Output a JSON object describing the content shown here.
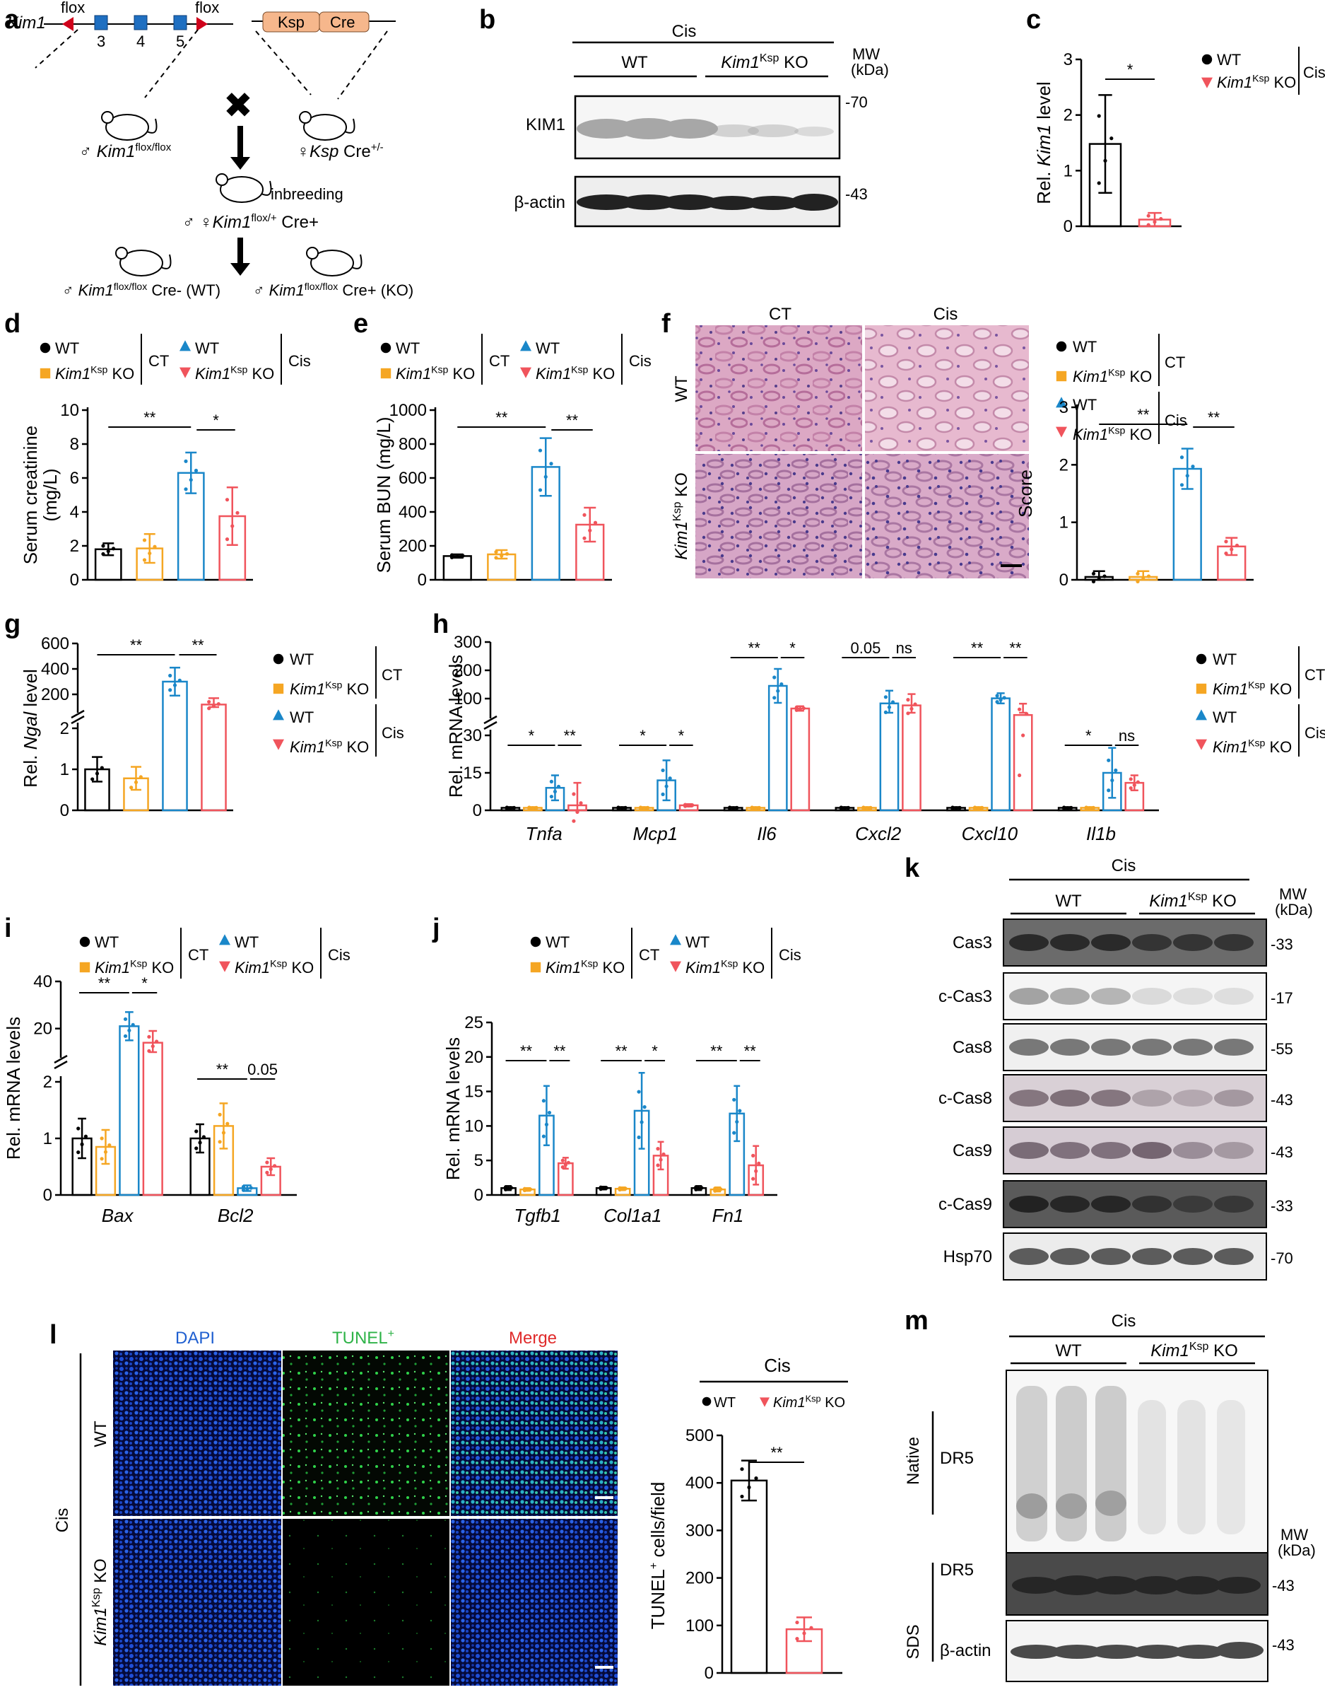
{
  "panel_letters": [
    "a",
    "b",
    "c",
    "d",
    "e",
    "f",
    "g",
    "h",
    "i",
    "j",
    "k",
    "l",
    "m"
  ],
  "panel_a": {
    "gene": "Kim1",
    "flox_left": "flox",
    "flox_right": "flox",
    "exons": [
      "3",
      "4",
      "5"
    ],
    "construct_ksp": "Ksp",
    "construct_cre": "Cre",
    "male_parent_prefix": "♂",
    "male_parent_gene": "Kim1",
    "male_parent_sup": "flox/flox",
    "female_parent_prefix": "♀",
    "female_parent_gene": "Ksp",
    "female_parent_rest": " Cre",
    "female_parent_sup": "+/-",
    "inbreeding": "inbreeding",
    "f1_prefix": "♂ ♀",
    "f1_gene": "Kim1",
    "f1_sup": "flox/+",
    "f1_rest": " Cre+",
    "wt_prefix": "♂",
    "wt_gene": "Kim1",
    "wt_sup": "flox/flox",
    "wt_rest": " Cre- (WT)",
    "ko_prefix": "♂",
    "ko_gene": "Kim1",
    "ko_sup": "flox/flox",
    "ko_rest": " Cre+ (KO)",
    "cross_symbol": "✖"
  },
  "legend_ct_cis": {
    "wt": "WT",
    "ko_gene": "Kim1",
    "ko_sup": "Ksp",
    "ko_rest": " KO",
    "ct": "CT",
    "cis": "Cis"
  },
  "panel_b": {
    "header": "Cis",
    "wt": "WT",
    "ko_gene": "Kim1",
    "ko_sup": "Ksp",
    "ko_rest": " KO",
    "mw_line1": "MW",
    "mw_line2": "(kDa)",
    "blots": [
      {
        "label": "KIM1",
        "mw": "-70"
      },
      {
        "label": "β-actin",
        "mw": "-43"
      }
    ]
  },
  "panel_k": {
    "header": "Cis",
    "wt": "WT",
    "ko_gene": "Kim1",
    "ko_sup": "Ksp",
    "ko_rest": " KO",
    "mw_line1": "MW",
    "mw_line2": "(kDa)",
    "blots": [
      {
        "label": "Cas3",
        "mw": "-33"
      },
      {
        "label": "c-Cas3",
        "mw": "-17"
      },
      {
        "label": "Cas8",
        "mw": "-55"
      },
      {
        "label": "c-Cas8",
        "mw": "-43"
      },
      {
        "label": "Cas9",
        "mw": "-43"
      },
      {
        "label": "c-Cas9",
        "mw": "-33"
      },
      {
        "label": "Hsp70",
        "mw": "-70"
      }
    ]
  },
  "panel_m": {
    "header": "Cis",
    "wt": "WT",
    "ko_gene": "Kim1",
    "ko_sup": "Ksp",
    "ko_rest": " KO",
    "native": "Native",
    "sds": "SDS",
    "dr5_native": "DR5",
    "dr5_sds": "DR5",
    "beta_actin": "β-actin",
    "mw_line1": "MW",
    "mw_line2": "(kDa)",
    "mw_dr5": "-43",
    "mw_actin": "-43"
  },
  "panel_f_images": {
    "col_ct": "CT",
    "col_cis": "Cis",
    "row_wt": "WT",
    "row_ko_gene": "Kim1",
    "row_ko_sup": "Ksp",
    "row_ko_rest": " KO"
  },
  "panel_l_images": {
    "col_dapi": "DAPI",
    "col_tunel": "TUNEL",
    "col_tunel_sup": "+",
    "col_merge": "Merge",
    "row_wt": "WT",
    "row_ko_gene": "Kim1",
    "row_ko_sup": "Ksp",
    "row_ko_rest": " KO",
    "side": "Cis"
  },
  "colors": {
    "wt_ct": "#000000",
    "ko_ct": "#f5a623",
    "wt_cis": "#1a87c9",
    "ko_cis": "#f0545c",
    "construct": "#f6b78c",
    "exon": "#1f6fc1",
    "loxp": "#d0021b"
  },
  "chart_data": [
    {
      "panel": "c",
      "type": "bar",
      "categories": [
        "WT",
        "Kim1Ksp KO"
      ],
      "values": [
        1.48,
        0.12
      ],
      "errors": [
        0.88,
        0.12
      ],
      "ylabel_pre": "Rel. ",
      "ylabel_it": "Kim1",
      "ylabel_post": "  level",
      "ylim": [
        0,
        3
      ],
      "yticks": [
        0,
        1,
        2,
        3
      ],
      "legend": {
        "wt": "WT",
        "ko_gene": "Kim1",
        "ko_sup": "Ksp",
        "ko_rest": " KO",
        "group": "Cis"
      },
      "sig": [
        {
          "label": "*"
        }
      ]
    },
    {
      "panel": "d",
      "type": "bar",
      "categories": [
        "WT CT",
        "KO CT",
        "WT Cis",
        "KO Cis"
      ],
      "values": [
        1.8,
        1.85,
        6.3,
        3.75
      ],
      "errors": [
        0.35,
        0.85,
        1.2,
        1.7
      ],
      "ylabel": "Serum creatinine",
      "ylabel2": "(mg/L)",
      "ylim": [
        0,
        10
      ],
      "yticks": [
        0,
        2,
        4,
        6,
        8,
        10
      ],
      "sig": [
        {
          "label": "**"
        },
        {
          "label": "*"
        }
      ]
    },
    {
      "panel": "e",
      "type": "bar",
      "categories": [
        "WT CT",
        "KO CT",
        "WT Cis",
        "KO Cis"
      ],
      "values": [
        140,
        150,
        665,
        325
      ],
      "errors": [
        10,
        25,
        170,
        100
      ],
      "ylabel": "Serum BUN (mg/L)",
      "ylim": [
        0,
        1000
      ],
      "yticks": [
        0,
        200,
        400,
        600,
        800,
        1000
      ],
      "sig": [
        {
          "label": "**"
        },
        {
          "label": "**"
        }
      ]
    },
    {
      "panel": "f",
      "type": "bar",
      "categories": [
        "WT CT",
        "KO CT",
        "WT Cis",
        "KO Cis"
      ],
      "values": [
        0.05,
        0.05,
        1.93,
        0.58
      ],
      "errors": [
        0.1,
        0.1,
        0.35,
        0.15
      ],
      "ylabel": "Score",
      "ylim": [
        0,
        3
      ],
      "yticks": [
        0,
        1,
        2,
        3
      ],
      "sig": [
        {
          "label": "**"
        },
        {
          "label": "**"
        }
      ]
    },
    {
      "panel": "g",
      "type": "bar",
      "broken_axis": true,
      "categories": [
        "WT CT",
        "KO CT",
        "WT Cis",
        "KO Cis"
      ],
      "values": [
        1.0,
        0.78,
        300,
        120
      ],
      "errors": [
        0.3,
        0.28,
        110,
        50
      ],
      "ylabel_pre": "Rel. ",
      "ylabel_it": "Ngal",
      "ylabel_post": "  level",
      "lower_ticks": [
        0,
        1,
        2
      ],
      "upper_ticks": [
        200,
        400,
        600
      ],
      "sig": [
        {
          "label": "**"
        },
        {
          "label": "**"
        }
      ]
    },
    {
      "panel": "h",
      "type": "bar",
      "broken_axis": true,
      "categories": [
        "Tnfa",
        "Mcp1",
        "Il6",
        "Cxcl2",
        "Cxcl10",
        "Il1b"
      ],
      "series": [
        {
          "group": "WT CT",
          "values": [
            1,
            1,
            1,
            1,
            1,
            1
          ]
        },
        {
          "group": "KO CT",
          "values": [
            1,
            1,
            1,
            1,
            1,
            1
          ]
        },
        {
          "group": "WT Cis",
          "values": [
            9,
            12,
            145,
            83,
            101,
            15
          ]
        },
        {
          "group": "KO Cis",
          "values": [
            2,
            2,
            65,
            76,
            42,
            11
          ]
        }
      ],
      "errors": [
        [
          0.3,
          0.3,
          5,
          9
        ],
        [
          0.3,
          0.3,
          8,
          0.5
        ],
        [
          0.3,
          0.3,
          60,
          8
        ],
        [
          0.3,
          0.3,
          45,
          40
        ],
        [
          0.3,
          0.3,
          18,
          40
        ],
        [
          0.3,
          0.3,
          10,
          3
        ]
      ],
      "ylabel": "Rel. mRNA levels",
      "lower_ticks": [
        0,
        15,
        30
      ],
      "upper_ticks": [
        100,
        200,
        300
      ],
      "sig": [
        {
          "cat": "Tnfa",
          "left": "*",
          "right": "**"
        },
        {
          "cat": "Mcp1",
          "left": "*",
          "right": "*"
        },
        {
          "cat": "Il6",
          "left": "**",
          "right": "*"
        },
        {
          "cat": "Cxcl2",
          "left": "0.05",
          "right": "ns"
        },
        {
          "cat": "Cxcl10",
          "left": "**",
          "right": "**"
        },
        {
          "cat": "Il1b",
          "left": "*",
          "right": "ns"
        }
      ]
    },
    {
      "panel": "i",
      "type": "bar",
      "broken_axis": true,
      "categories": [
        "Bax",
        "Bcl2"
      ],
      "series": [
        {
          "group": "WT CT",
          "values": [
            1.0,
            1.0
          ]
        },
        {
          "group": "KO CT",
          "values": [
            0.85,
            1.22
          ]
        },
        {
          "group": "WT Cis",
          "values": [
            21,
            0.12
          ]
        },
        {
          "group": "KO Cis",
          "values": [
            14,
            0.5
          ]
        }
      ],
      "errors": [
        [
          0.35,
          0.3,
          6,
          5
        ],
        [
          0.25,
          0.4,
          0.05,
          0.15
        ]
      ],
      "ylabel": "Rel. mRNA levels",
      "lower_ticks": [
        0,
        1,
        2
      ],
      "upper_ticks": [
        20,
        40
      ],
      "sig": [
        {
          "cat": "Bax",
          "left": "**",
          "right": "*"
        },
        {
          "cat": "Bcl2",
          "left": "**",
          "right": "0.05"
        }
      ]
    },
    {
      "panel": "j",
      "type": "bar",
      "categories": [
        "Tgfb1",
        "Col1a1",
        "Fn1"
      ],
      "series": [
        {
          "group": "WT CT",
          "values": [
            1.0,
            1.0,
            1.0
          ]
        },
        {
          "group": "KO CT",
          "values": [
            0.8,
            0.9,
            0.8
          ]
        },
        {
          "group": "WT Cis",
          "values": [
            11.5,
            12.2,
            11.8
          ]
        },
        {
          "group": "KO Cis",
          "values": [
            4.6,
            5.7,
            4.3
          ]
        }
      ],
      "errors": [
        [
          0.3,
          0.2,
          4.3,
          0.8
        ],
        [
          0.2,
          0.2,
          5.5,
          2.0
        ],
        [
          0.3,
          0.3,
          4.0,
          2.8
        ]
      ],
      "ylabel_pre": "Rel. mRNA  levels",
      "ylim": [
        0,
        25
      ],
      "yticks": [
        0,
        5,
        10,
        15,
        20,
        25
      ],
      "sig": [
        {
          "cat": "Tgfb1",
          "left": "**",
          "right": "**"
        },
        {
          "cat": "Col1a1",
          "left": "**",
          "right": "*"
        },
        {
          "cat": "Fn1",
          "left": "**",
          "right": "**"
        }
      ]
    },
    {
      "panel": "l",
      "type": "bar",
      "categories": [
        "WT",
        "Kim1Ksp KO"
      ],
      "values": [
        405,
        92
      ],
      "errors": [
        42,
        25
      ],
      "ylabel_sup": "+",
      "ylabel_pre": "TUNEL",
      "ylabel_post": " cells/field",
      "ylim": [
        0,
        500
      ],
      "yticks": [
        0,
        100,
        200,
        300,
        400,
        500
      ],
      "legend": {
        "header": "Cis",
        "wt": "WT",
        "ko_gene": "Kim1",
        "ko_sup": "Ksp",
        "ko_rest": " KO"
      },
      "sig": [
        {
          "label": "**"
        }
      ]
    }
  ]
}
